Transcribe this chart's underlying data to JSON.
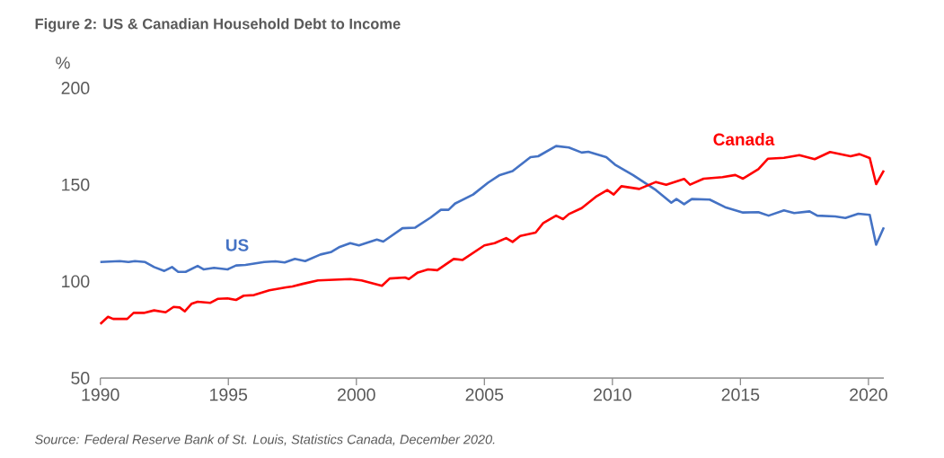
{
  "chart_data": {
    "type": "line",
    "title": "Figure 2:  US & Canadian Household Debt to Income",
    "ylabel": "%",
    "annotations": [
      "Source:  Federal Reserve Bank of St. Louis, Statistics Canada, December 2020."
    ],
    "xlim": [
      1990,
      2020.6
    ],
    "xticks": [
      1990,
      1995,
      2000,
      2005,
      2010,
      2015,
      2020
    ],
    "ylim": [
      50,
      200
    ],
    "yticks": [
      50,
      100,
      150,
      200
    ],
    "line_style": "solid",
    "series": [
      {
        "name": "US",
        "color": "#4472c4",
        "x": [
          1990,
          1990.76,
          1991.1,
          1991.35,
          1991.75,
          1992.1,
          1992.5,
          1992.8,
          1993.04,
          1993.33,
          1993.8,
          1994.03,
          1994.44,
          1994.97,
          1995.3,
          1995.67,
          1996.4,
          1996.84,
          1997.2,
          1997.6,
          1998.0,
          1998.6,
          1999.0,
          1999.35,
          1999.76,
          2000.1,
          2000.8,
          2001.05,
          2001.8,
          2002.3,
          2002.9,
          2003.3,
          2003.6,
          2003.85,
          2004.56,
          2005.14,
          2005.6,
          2006.1,
          2006.8,
          2007.1,
          2007.8,
          2008.3,
          2008.8,
          2009.06,
          2009.76,
          2010.1,
          2010.8,
          2011.7,
          2012.3,
          2012.5,
          2012.8,
          2013.1,
          2013.8,
          2014.4,
          2015.1,
          2015.7,
          2016.1,
          2016.7,
          2017.1,
          2017.7,
          2018.0,
          2018.7,
          2019.1,
          2019.6,
          2020.05,
          2020.3,
          2020.6
        ],
        "values": [
          110,
          110.5,
          110,
          110.5,
          110,
          107.4,
          105.4,
          107.4,
          104.9,
          104.9,
          108,
          106.2,
          107,
          106.2,
          108.2,
          108.5,
          110,
          110.4,
          109.8,
          111.6,
          110.5,
          113.9,
          115.1,
          117.8,
          119.8,
          118.6,
          121.6,
          120.6,
          127.5,
          127.8,
          133,
          137,
          137,
          140.2,
          144.9,
          151,
          155,
          157,
          164.2,
          164.7,
          170,
          169.2,
          166.6,
          167,
          164.2,
          160.4,
          155,
          147.2,
          140.7,
          142.6,
          139.9,
          142.6,
          142.3,
          138.4,
          135.6,
          135.8,
          134,
          136.7,
          135.3,
          136.2,
          134,
          133.6,
          132.8,
          135,
          134.4,
          119,
          127.9
        ]
      },
      {
        "name": "Canada",
        "color": "#ff0000",
        "x": [
          1990,
          1990.3,
          1990.5,
          1991.05,
          1991.3,
          1991.7,
          1992.1,
          1992.55,
          1992.86,
          1993.1,
          1993.3,
          1993.56,
          1993.8,
          1994.3,
          1994.6,
          1994.97,
          1995.3,
          1995.6,
          1996.0,
          1996.6,
          1997.25,
          1997.5,
          1997.9,
          1998.5,
          1999.76,
          2000.2,
          2001.0,
          2001.3,
          2001.9,
          2002.05,
          2002.4,
          2002.8,
          2003.16,
          2003.8,
          2004.15,
          2005.0,
          2005.4,
          2005.85,
          2006.1,
          2006.4,
          2007.0,
          2007.3,
          2007.8,
          2008.07,
          2008.3,
          2008.8,
          2009.35,
          2009.8,
          2010.05,
          2010.35,
          2011.05,
          2011.7,
          2012.1,
          2012.8,
          2013.03,
          2013.56,
          2014.3,
          2014.8,
          2015.1,
          2015.7,
          2016.07,
          2016.7,
          2017.3,
          2017.9,
          2018.5,
          2019.3,
          2019.65,
          2020.05,
          2020.3,
          2020.6
        ],
        "values": [
          78,
          81.7,
          80.6,
          80.6,
          83.7,
          83.7,
          85,
          84,
          86.8,
          86.5,
          84.5,
          88.4,
          89.5,
          88.9,
          91,
          91.2,
          90.4,
          92.6,
          92.9,
          95.4,
          96.9,
          97.4,
          98.7,
          100.5,
          101.2,
          100.5,
          97.7,
          101.5,
          102,
          101.2,
          104.6,
          106.2,
          105.8,
          111.6,
          111.1,
          118.6,
          119.8,
          122.4,
          120.4,
          123.5,
          125.2,
          130.2,
          134,
          132.2,
          134.8,
          137.9,
          143.7,
          147.2,
          144.9,
          149.2,
          147.8,
          151.4,
          150,
          153,
          150,
          153.1,
          153.9,
          155,
          153.1,
          158,
          163.4,
          163.9,
          165.3,
          163.2,
          166.9,
          164.7,
          165.8,
          163.8,
          150.3,
          157.3
        ]
      }
    ]
  }
}
